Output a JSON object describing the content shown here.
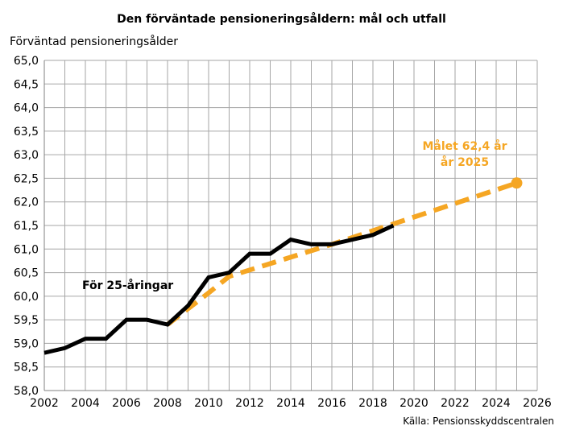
{
  "chart_data": {
    "type": "line",
    "title": "Den förväntade pensioneringsåldern: mål och utfall",
    "ylabel": "Förväntad pensioneringsålder",
    "xlabel": "",
    "source": "Källa: Pensionsskyddscentralen",
    "xlim": [
      2002,
      2026
    ],
    "ylim": [
      58.0,
      65.0
    ],
    "x_ticks": [
      "2002",
      "2004",
      "2006",
      "2008",
      "2010",
      "2012",
      "2014",
      "2016",
      "2018",
      "2020",
      "2022",
      "2024",
      "2026"
    ],
    "y_ticks": [
      "58,0",
      "58,5",
      "59,0",
      "59,5",
      "60,0",
      "60,5",
      "61,0",
      "61,5",
      "62,0",
      "62,5",
      "63,0",
      "63,5",
      "64,0",
      "64,5",
      "65,0"
    ],
    "grid": true,
    "series": [
      {
        "name": "",
        "style": "solid",
        "color": "#000000",
        "points": [
          [
            2002,
            58.8
          ],
          [
            2003,
            58.9
          ],
          [
            2004,
            59.1
          ],
          [
            2005,
            59.1
          ],
          [
            2006,
            59.5
          ],
          [
            2007,
            59.5
          ],
          [
            2008,
            59.4
          ],
          [
            2009,
            59.8
          ],
          [
            2010,
            60.4
          ],
          [
            2011,
            60.5
          ],
          [
            2012,
            60.9
          ],
          [
            2013,
            60.9
          ],
          [
            2014,
            61.2
          ],
          [
            2015,
            61.1
          ],
          [
            2016,
            61.1
          ],
          [
            2017,
            61.2
          ],
          [
            2018,
            61.3
          ],
          [
            2019,
            61.5
          ]
        ]
      },
      {
        "name": "",
        "style": "dashed",
        "color": "#f5a623",
        "points": [
          [
            2008,
            59.4
          ],
          [
            2010,
            60.07
          ],
          [
            2011,
            60.42
          ],
          [
            2016,
            61.1
          ],
          [
            2025,
            62.4
          ]
        ],
        "end_marker": true
      }
    ],
    "annotations": {
      "age_group_label": "För 25-åringar",
      "target_line1": "Målet 62,4 år",
      "target_line2": "år 2025"
    }
  }
}
